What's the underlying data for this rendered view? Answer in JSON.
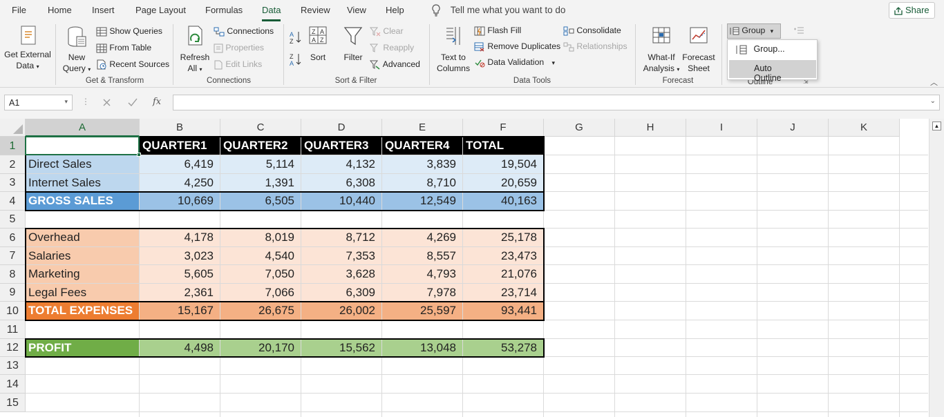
{
  "menu": {
    "tabs": [
      "File",
      "Home",
      "Insert",
      "Page Layout",
      "Formulas",
      "Data",
      "Review",
      "View",
      "Help"
    ],
    "active": "Data",
    "tell_me": "Tell me what you want to do",
    "share": "Share"
  },
  "ribbon": {
    "get_external_data": [
      "Get External",
      "Data"
    ],
    "new_query": [
      "New",
      "Query"
    ],
    "show_queries": "Show Queries",
    "from_table": "From Table",
    "recent_sources": "Recent Sources",
    "group_get_transform": "Get & Transform",
    "refresh_all": [
      "Refresh",
      "All"
    ],
    "connections": "Connections",
    "properties": "Properties",
    "edit_links": "Edit Links",
    "group_connections": "Connections",
    "sort": "Sort",
    "filter": "Filter",
    "clear": "Clear",
    "reapply": "Reapply",
    "advanced": "Advanced",
    "group_sort_filter": "Sort & Filter",
    "text_to_columns": [
      "Text to",
      "Columns"
    ],
    "flash_fill": "Flash Fill",
    "remove_duplicates": "Remove Duplicates",
    "data_validation": "Data Validation",
    "consolidate": "Consolidate",
    "relationships": "Relationships",
    "group_data_tools": "Data Tools",
    "what_if": [
      "What-If",
      "Analysis"
    ],
    "forecast_sheet": [
      "Forecast",
      "Sheet"
    ],
    "group_forecast": "Forecast",
    "group_button": "Group",
    "group_outline": "Outline"
  },
  "dropdown": {
    "items": [
      "Group...",
      "Auto Outline"
    ],
    "hovered": "Auto Outline"
  },
  "formula_bar": {
    "name_box": "A1",
    "formula": ""
  },
  "columns": [
    "A",
    "B",
    "C",
    "D",
    "E",
    "F",
    "G",
    "H",
    "I",
    "J",
    "K"
  ],
  "rows": [
    "1",
    "2",
    "3",
    "4",
    "5",
    "6",
    "7",
    "8",
    "9",
    "10",
    "11",
    "12",
    "13",
    "14",
    "15"
  ],
  "sheet": {
    "header": [
      "",
      "QUARTER1",
      "QUARTER2",
      "QUARTER3",
      "QUARTER4",
      "TOTAL"
    ],
    "direct_sales": [
      "Direct Sales",
      "6,419",
      "5,114",
      "4,132",
      "3,839",
      "19,504"
    ],
    "internet_sales": [
      "Internet Sales",
      "4,250",
      "1,391",
      "6,308",
      "8,710",
      "20,659"
    ],
    "gross_sales": [
      "GROSS SALES",
      "10,669",
      "6,505",
      "10,440",
      "12,549",
      "40,163"
    ],
    "overhead": [
      "Overhead",
      "4,178",
      "8,019",
      "8,712",
      "4,269",
      "25,178"
    ],
    "salaries": [
      "Salaries",
      "3,023",
      "4,540",
      "7,353",
      "8,557",
      "23,473"
    ],
    "marketing": [
      "Marketing",
      "5,605",
      "7,050",
      "3,628",
      "4,793",
      "21,076"
    ],
    "legal_fees": [
      "Legal Fees",
      "2,361",
      "7,066",
      "6,309",
      "7,978",
      "23,714"
    ],
    "total_expenses": [
      "TOTAL EXPENSES",
      "15,167",
      "26,675",
      "26,002",
      "25,597",
      "93,441"
    ],
    "profit": [
      "PROFIT",
      "4,498",
      "20,170",
      "15,562",
      "13,048",
      "53,278"
    ]
  },
  "colors": {
    "excel_green": "#185c37",
    "blue_label": "#bdd7ee",
    "blue_cell": "#ddebf7",
    "blue_total_label": "#5b9bd5",
    "blue_total": "#9bc2e6",
    "orange_label": "#f8cbad",
    "orange_cell": "#fce4d6",
    "orange_total_label": "#ed7d31",
    "orange_total": "#f4b084",
    "green_label": "#70ad47",
    "green_cell": "#a9d08e"
  }
}
